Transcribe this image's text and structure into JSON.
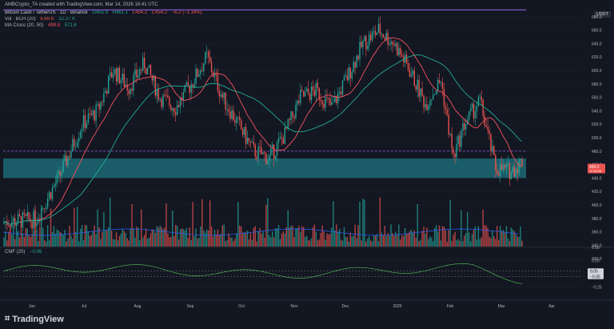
{
  "header": {
    "author_line": "AMBCrypto_TA created with TradingView.com, Mar 14, 2026 16:41 UTC",
    "symbol": "Bitcoin Cash / TetherUS · 1D · Binance",
    "ohlc": [
      "O455.9",
      "H461.1",
      "L454.2",
      "C454.2",
      "−6.2 (−1.34%)"
    ],
    "vol_label": "Vol · BCH (20)",
    "vol_values": [
      "6.69 K",
      "32.27 K"
    ],
    "ma_label": "MA Cross (20, 50)",
    "ma_values": [
      "499.8",
      "571.6"
    ],
    "cmf_label": "CMF (20)",
    "cmf_value": "−0.05"
  },
  "currency_badge": "USDT",
  "brand": "TradingView",
  "colors": {
    "background": "#131722",
    "up": "#26a69a",
    "down": "#ef5350",
    "ma_fast": "#f7525f",
    "ma_slow": "#22ab94",
    "support_zone": "#1d6f7a",
    "resistance_line": "#7e57c2",
    "cmf": "#4caf50",
    "vol_ma": "#2962ff"
  },
  "chart_data": {
    "type": "candlestick",
    "price_axis": {
      "ylim": [
        300,
        700
      ],
      "ticks": [
        320,
        340,
        360,
        380,
        400,
        420,
        440,
        460,
        480,
        500,
        520,
        540,
        560,
        580,
        600,
        620,
        640,
        660,
        680
      ]
    },
    "price_tick_labels": [
      "320.0",
      "340.0",
      "360.0",
      "380.0",
      "400.0",
      "420.0",
      "440.0",
      "460.0",
      "480.0",
      "500.0",
      "520.0",
      "540.0",
      "560.0",
      "580.0",
      "600.0",
      "620.0",
      "640.0",
      "660.0",
      "680.0"
    ],
    "x_labels": [
      "Jun",
      "Jul",
      "Aug",
      "Sep",
      "Oct",
      "Nov",
      "Dec",
      "2026",
      "Feb",
      "Mar",
      "Apr"
    ],
    "last_price_label": "454.2",
    "last_price_sub": "11:18:18",
    "support_zone": [
      440,
      469
    ],
    "dashed_level": 480,
    "resistance_level": 690,
    "ma_fast_last": 499.8,
    "ma_slow_last": 571.6,
    "cmf": {
      "name": "CMF (20)",
      "ticks": [
        "0.50",
        "0.25",
        "0.00",
        "−0.25"
      ],
      "tick_values": [
        0.5,
        0.25,
        0,
        -0.25
      ],
      "markers": [
        "0.05",
        "−0.05"
      ],
      "marker_values": [
        0.05,
        -0.05
      ],
      "ylim": [
        -0.35,
        0.6
      ]
    },
    "volume_ma_period": 20,
    "last_volume": "6.69 K",
    "volume_ma_last": "32.27 K"
  }
}
